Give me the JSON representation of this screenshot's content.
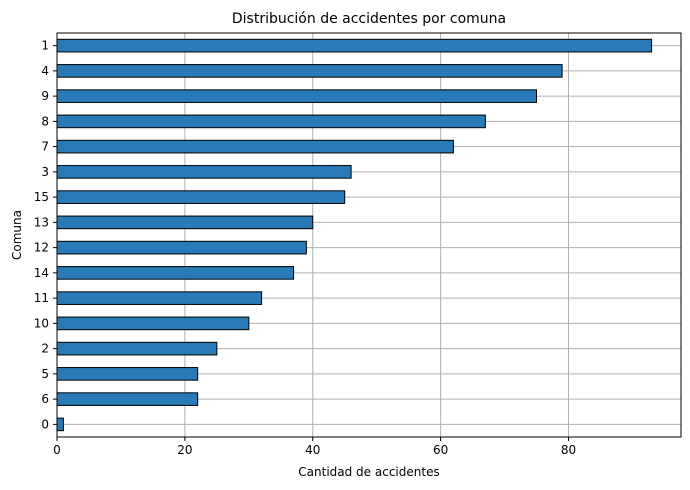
{
  "chart_data": {
    "type": "bar",
    "orientation": "horizontal",
    "title": "Distribución de accidentes por comuna",
    "xlabel": "Cantidad de accidentes",
    "ylabel": "Comuna",
    "categories": [
      "1",
      "4",
      "9",
      "8",
      "7",
      "3",
      "15",
      "13",
      "12",
      "14",
      "11",
      "10",
      "2",
      "5",
      "6",
      "0"
    ],
    "values": [
      93,
      79,
      75,
      67,
      62,
      46,
      45,
      40,
      39,
      37,
      32,
      30,
      25,
      22,
      22,
      1
    ],
    "xlim": [
      0,
      97.6
    ],
    "xticks": [
      0,
      20,
      40,
      60,
      80
    ],
    "grid": true,
    "colors": {
      "bar_fill": "#2a7ab8",
      "bar_edge": "#000000",
      "grid": "#b0b0b0"
    }
  }
}
